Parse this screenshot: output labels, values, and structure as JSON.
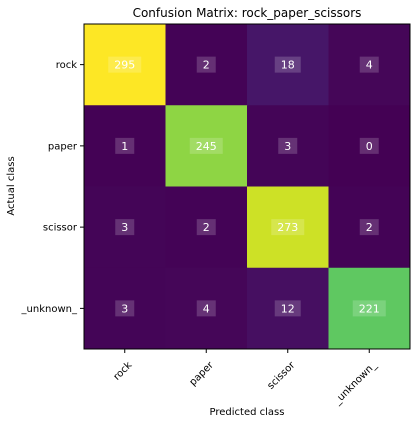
{
  "chart_data": {
    "type": "heatmap",
    "title": "Confusion Matrix: rock_paper_scissors",
    "xlabel": "Predicted class",
    "ylabel": "Actual class",
    "x_categories": [
      "rock",
      "paper",
      "scissor",
      "_unknown_"
    ],
    "y_categories": [
      "rock",
      "paper",
      "scissor",
      "_unknown_"
    ],
    "values": [
      [
        295,
        2,
        18,
        4
      ],
      [
        1,
        245,
        3,
        0
      ],
      [
        3,
        2,
        273,
        2
      ],
      [
        3,
        4,
        12,
        221
      ]
    ],
    "colormap": "viridis",
    "grid": false
  }
}
